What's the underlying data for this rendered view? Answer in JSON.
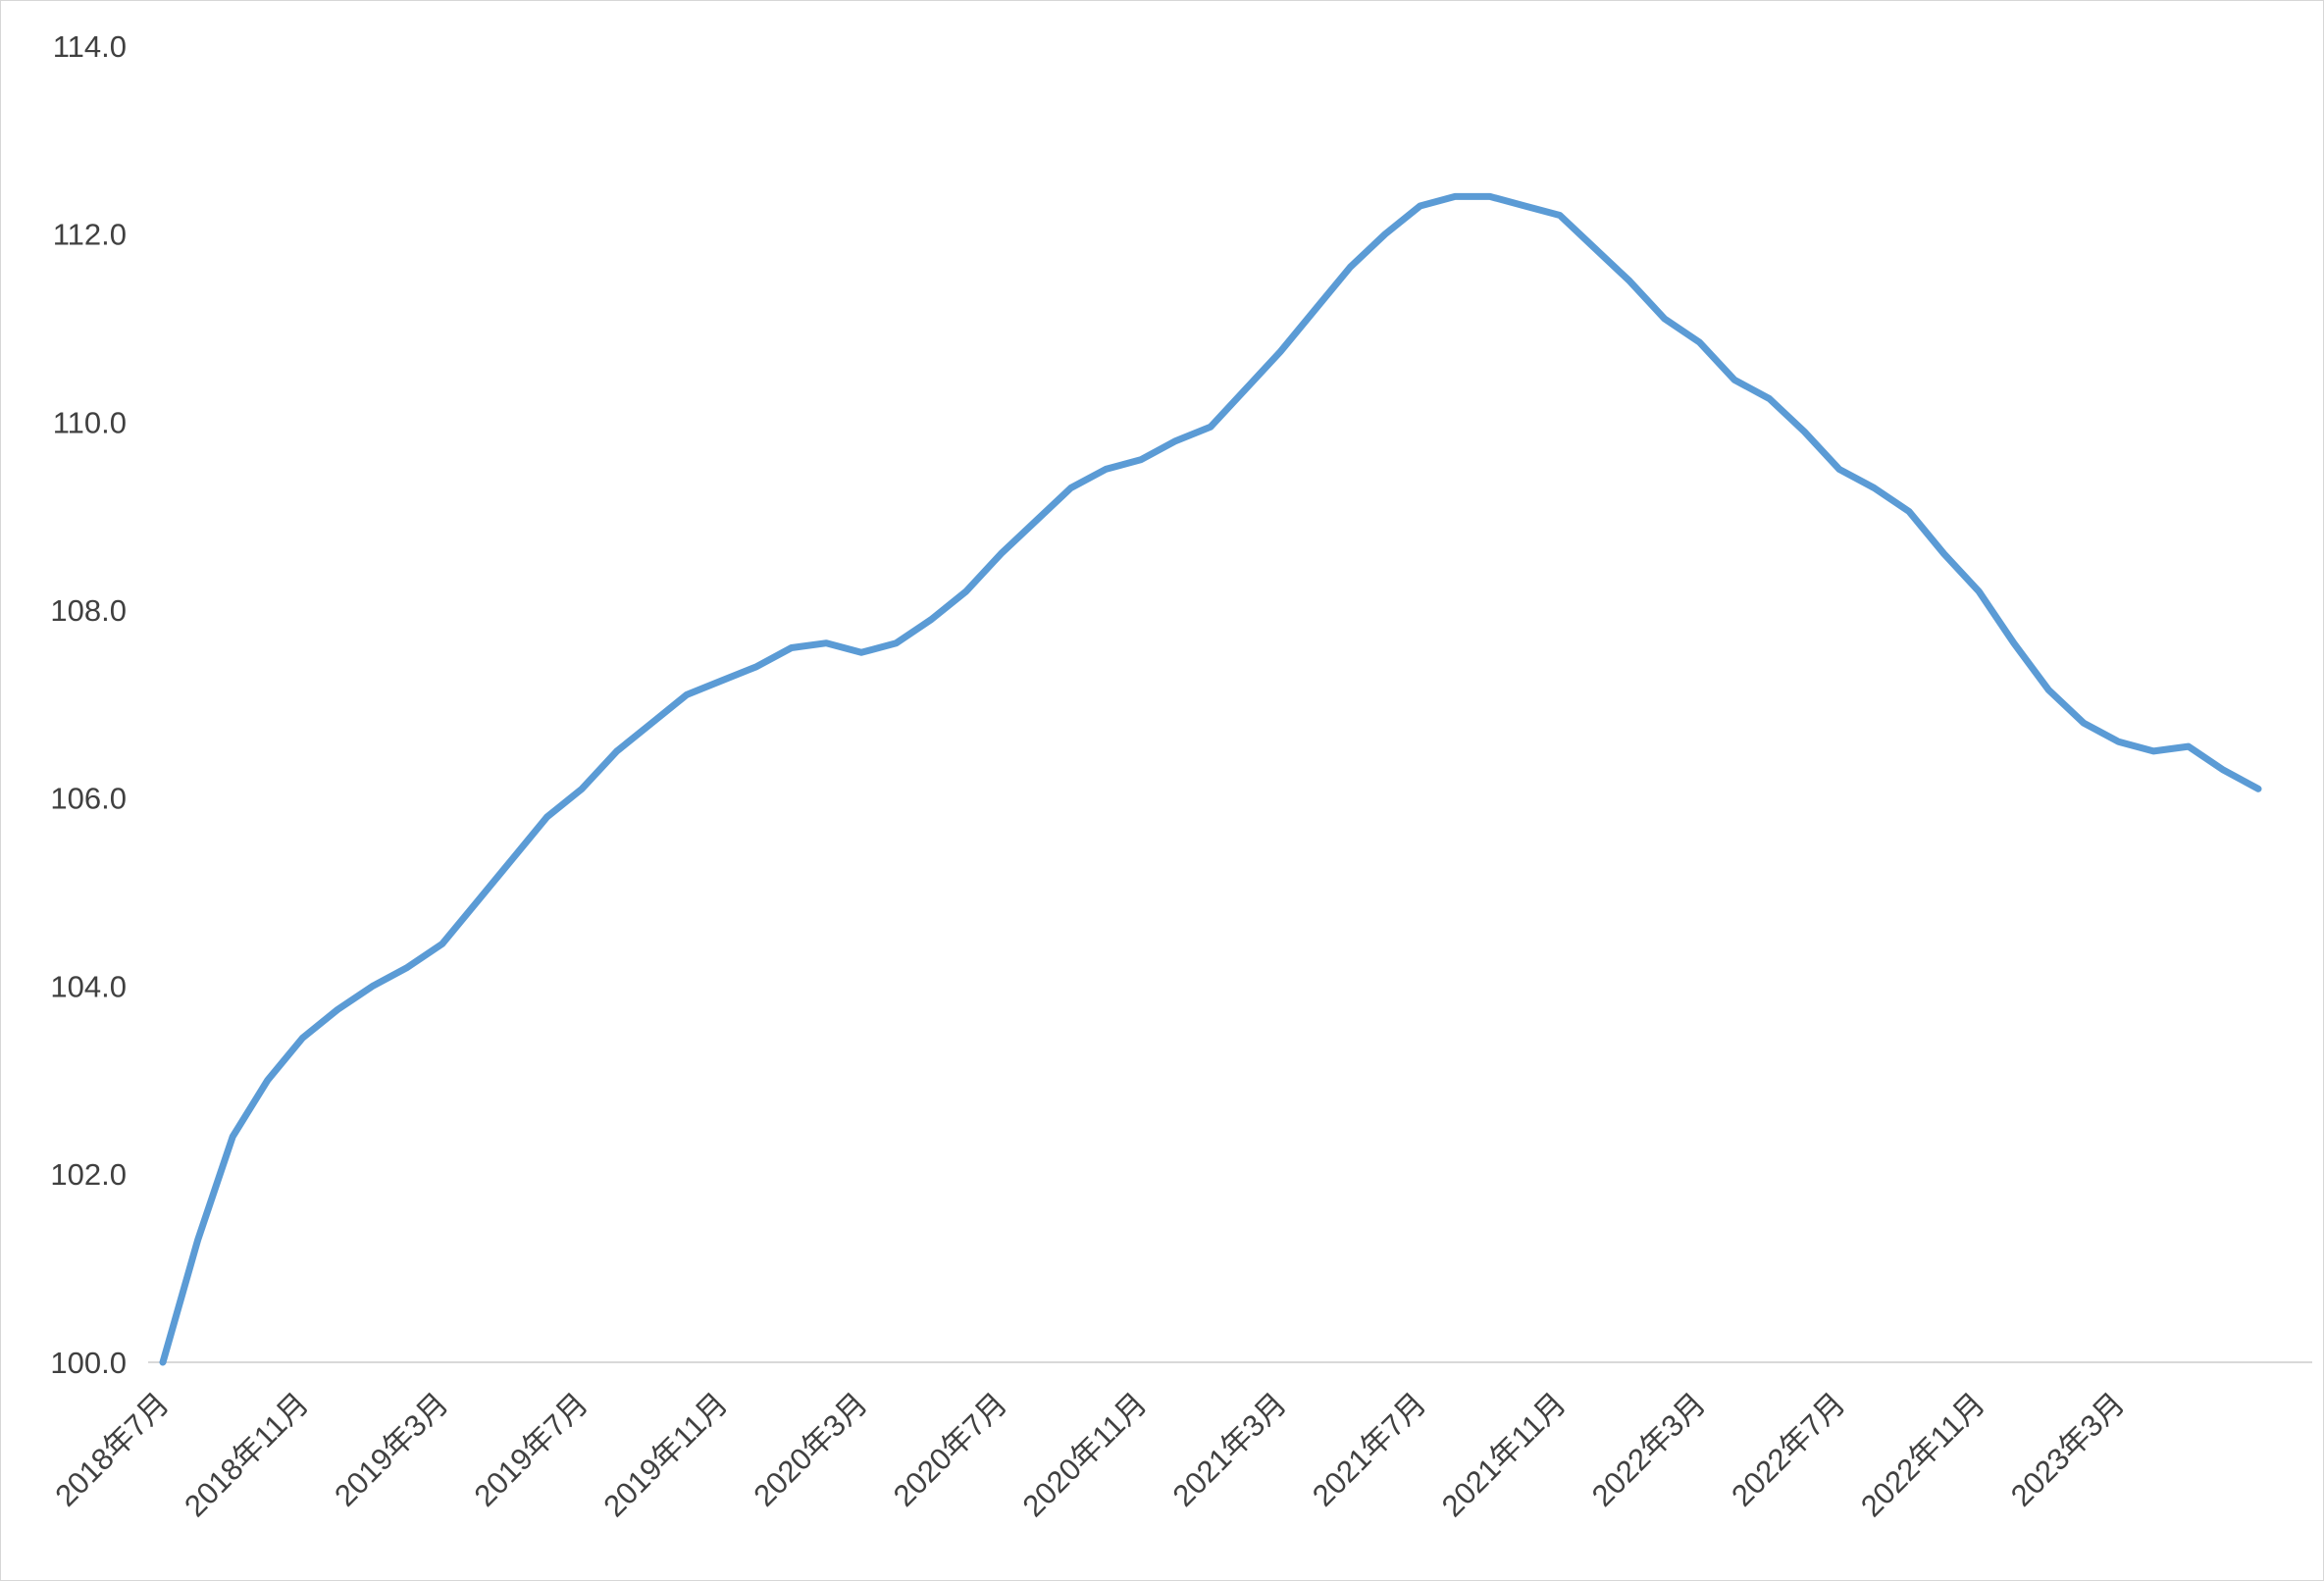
{
  "chart_data": {
    "type": "line",
    "title": "",
    "xlabel": "",
    "ylabel": "",
    "ylim": [
      100.0,
      114.0
    ],
    "grid": false,
    "legend": "none",
    "line_color": "#5b9bd5",
    "axis_color": "#d9d9d9",
    "label_color": "#404040",
    "ytick_labels": [
      "100.0",
      "102.0",
      "104.0",
      "106.0",
      "108.0",
      "110.0",
      "112.0",
      "114.0"
    ],
    "ytick_values": [
      100,
      102,
      104,
      106,
      108,
      110,
      112,
      114
    ],
    "xtick_labels": [
      "2018年7月",
      "2018年11月",
      "2019年3月",
      "2019年7月",
      "2019年11月",
      "2020年3月",
      "2020年7月",
      "2020年11月",
      "2021年3月",
      "2021年7月",
      "2021年11月",
      "2022年3月",
      "2022年7月",
      "2022年11月",
      "2023年3月"
    ],
    "xtick_month_indices": [
      0,
      4,
      8,
      12,
      16,
      20,
      24,
      28,
      32,
      36,
      40,
      44,
      48,
      52,
      56
    ],
    "x": [
      "2018年7月",
      "2018年8月",
      "2018年9月",
      "2018年10月",
      "2018年11月",
      "2018年12月",
      "2019年1月",
      "2019年2月",
      "2019年3月",
      "2019年4月",
      "2019年5月",
      "2019年6月",
      "2019年7月",
      "2019年8月",
      "2019年9月",
      "2019年10月",
      "2019年11月",
      "2019年12月",
      "2020年1月",
      "2020年2月",
      "2020年3月",
      "2020年4月",
      "2020年5月",
      "2020年6月",
      "2020年7月",
      "2020年8月",
      "2020年9月",
      "2020年10月",
      "2020年11月",
      "2020年12月",
      "2021年1月",
      "2021年2月",
      "2021年3月",
      "2021年4月",
      "2021年5月",
      "2021年6月",
      "2021年7月",
      "2021年8月",
      "2021年9月",
      "2021年10月",
      "2021年11月",
      "2021年12月",
      "2022年1月",
      "2022年2月",
      "2022年3月",
      "2022年4月",
      "2022年5月",
      "2022年6月",
      "2022年7月",
      "2022年8月",
      "2022年9月",
      "2022年10月",
      "2022年11月",
      "2022年12月",
      "2023年1月",
      "2023年2月",
      "2023年3月",
      "2023年4月",
      "2023年5月",
      "2023年6月",
      "2023年7月"
    ],
    "values": [
      100.0,
      101.3,
      102.4,
      103.0,
      103.45,
      103.75,
      104.0,
      104.2,
      104.45,
      104.9,
      105.35,
      105.8,
      106.1,
      106.5,
      106.8,
      107.1,
      107.25,
      107.4,
      107.6,
      107.65,
      107.55,
      107.65,
      107.9,
      108.2,
      108.6,
      108.95,
      109.3,
      109.5,
      109.6,
      109.8,
      109.95,
      110.35,
      110.75,
      111.2,
      111.65,
      112.0,
      112.3,
      112.4,
      112.4,
      112.3,
      112.2,
      111.85,
      111.5,
      111.1,
      110.85,
      110.45,
      110.25,
      109.9,
      109.5,
      109.3,
      109.05,
      108.6,
      108.2,
      107.65,
      107.15,
      106.8,
      106.6,
      106.5,
      106.55,
      106.3,
      106.1
    ]
  }
}
